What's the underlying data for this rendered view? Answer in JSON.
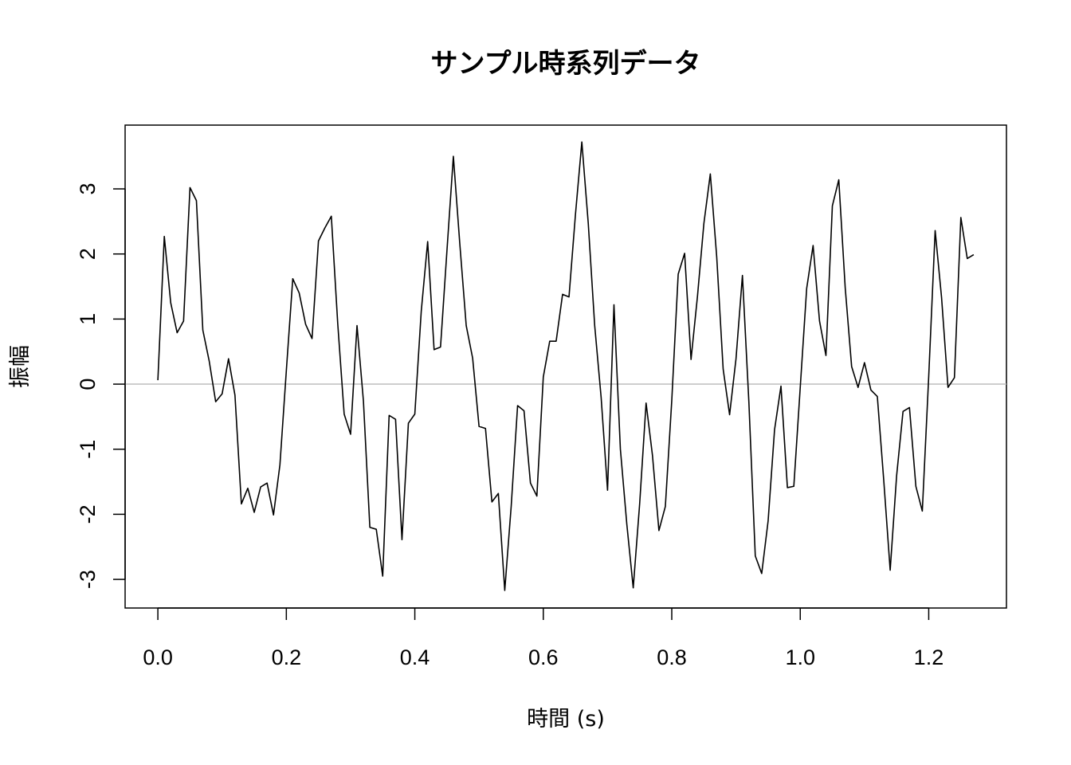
{
  "chart_data": {
    "type": "line",
    "title": "サンプル時系列データ",
    "xlabel": "時間 (s)",
    "ylabel": "振幅",
    "xlim": [
      -0.051,
      1.321
    ],
    "ylim": [
      -3.44,
      3.98
    ],
    "x_ticks": [
      0.0,
      0.2,
      0.4,
      0.6,
      0.8,
      1.0,
      1.2
    ],
    "x_tick_labels": [
      "0.0",
      "0.2",
      "0.4",
      "0.6",
      "0.8",
      "1.0",
      "1.2"
    ],
    "y_ticks": [
      -3,
      -2,
      -1,
      0,
      1,
      2,
      3
    ],
    "y_tick_labels": [
      "-3",
      "-2",
      "-1",
      "0",
      "1",
      "2",
      "3"
    ],
    "reference_line": {
      "y": 0,
      "color": "#bebebe"
    },
    "line_color": "#000000",
    "grid": false,
    "series": [
      {
        "x": [
          0.0,
          0.01,
          0.02,
          0.03,
          0.04,
          0.05,
          0.06,
          0.07,
          0.08,
          0.09,
          0.1,
          0.11,
          0.12,
          0.13,
          0.14,
          0.15,
          0.16,
          0.17,
          0.18,
          0.19,
          0.2,
          0.21,
          0.22,
          0.23,
          0.24,
          0.25,
          0.26,
          0.27,
          0.28,
          0.29,
          0.3,
          0.31,
          0.32,
          0.33,
          0.34,
          0.35,
          0.36,
          0.37,
          0.38,
          0.39,
          0.4,
          0.41,
          0.42,
          0.43,
          0.44,
          0.45,
          0.46,
          0.47,
          0.48,
          0.49,
          0.5,
          0.51,
          0.52,
          0.53,
          0.54,
          0.55,
          0.56,
          0.57,
          0.58,
          0.59,
          0.6,
          0.61,
          0.62,
          0.63,
          0.64,
          0.65,
          0.66,
          0.67,
          0.68,
          0.69,
          0.7,
          0.71,
          0.72,
          0.73,
          0.74,
          0.75,
          0.76,
          0.77,
          0.78,
          0.79,
          0.8,
          0.81,
          0.82,
          0.83,
          0.84,
          0.85,
          0.86,
          0.87,
          0.88,
          0.89,
          0.9,
          0.91,
          0.92,
          0.93,
          0.94,
          0.95,
          0.96,
          0.97,
          0.98,
          0.99,
          1.0,
          1.01,
          1.02,
          1.03,
          1.04,
          1.05,
          1.06,
          1.07,
          1.08,
          1.09,
          1.1,
          1.11,
          1.12,
          1.13,
          1.14,
          1.15,
          1.16,
          1.17,
          1.18,
          1.19,
          1.2,
          1.21,
          1.22,
          1.23,
          1.24,
          1.25,
          1.26,
          1.27
        ],
        "y": [
          0.06,
          2.27,
          1.25,
          0.79,
          0.97,
          3.02,
          2.82,
          0.83,
          0.35,
          -0.27,
          -0.15,
          0.39,
          -0.17,
          -1.84,
          -1.6,
          -1.97,
          -1.58,
          -1.52,
          -2.01,
          -1.24,
          0.21,
          1.62,
          1.4,
          0.92,
          0.7,
          2.2,
          2.4,
          2.58,
          0.93,
          -0.46,
          -0.77,
          0.9,
          -0.26,
          -2.2,
          -2.23,
          -2.95,
          -0.48,
          -0.54,
          -2.39,
          -0.6,
          -0.46,
          1.12,
          2.19,
          0.53,
          0.57,
          2.05,
          3.5,
          2.16,
          0.9,
          0.4,
          -0.65,
          -0.68,
          -1.81,
          -1.68,
          -3.17,
          -1.88,
          -0.33,
          -0.41,
          -1.52,
          -1.72,
          0.11,
          0.66,
          0.66,
          1.38,
          1.34,
          2.6,
          3.72,
          2.47,
          0.9,
          -0.2,
          -1.63,
          1.22,
          -1.0,
          -2.15,
          -3.13,
          -1.84,
          -0.29,
          -1.1,
          -2.25,
          -1.88,
          -0.25,
          1.69,
          2.01,
          0.38,
          1.35,
          2.47,
          3.23,
          1.95,
          0.23,
          -0.47,
          0.39,
          1.67,
          -0.27,
          -2.64,
          -2.91,
          -2.1,
          -0.7,
          -0.03,
          -1.59,
          -1.57,
          -0.05,
          1.47,
          2.13,
          0.97,
          0.44,
          2.74,
          3.14,
          1.48,
          0.27,
          -0.05,
          0.33,
          -0.09,
          -0.19,
          -1.48,
          -2.86,
          -1.41,
          -0.42,
          -0.36,
          -1.57,
          -1.95,
          0.12,
          2.36,
          1.33,
          -0.05,
          0.1,
          2.56,
          1.93,
          1.99
        ]
      }
    ]
  }
}
